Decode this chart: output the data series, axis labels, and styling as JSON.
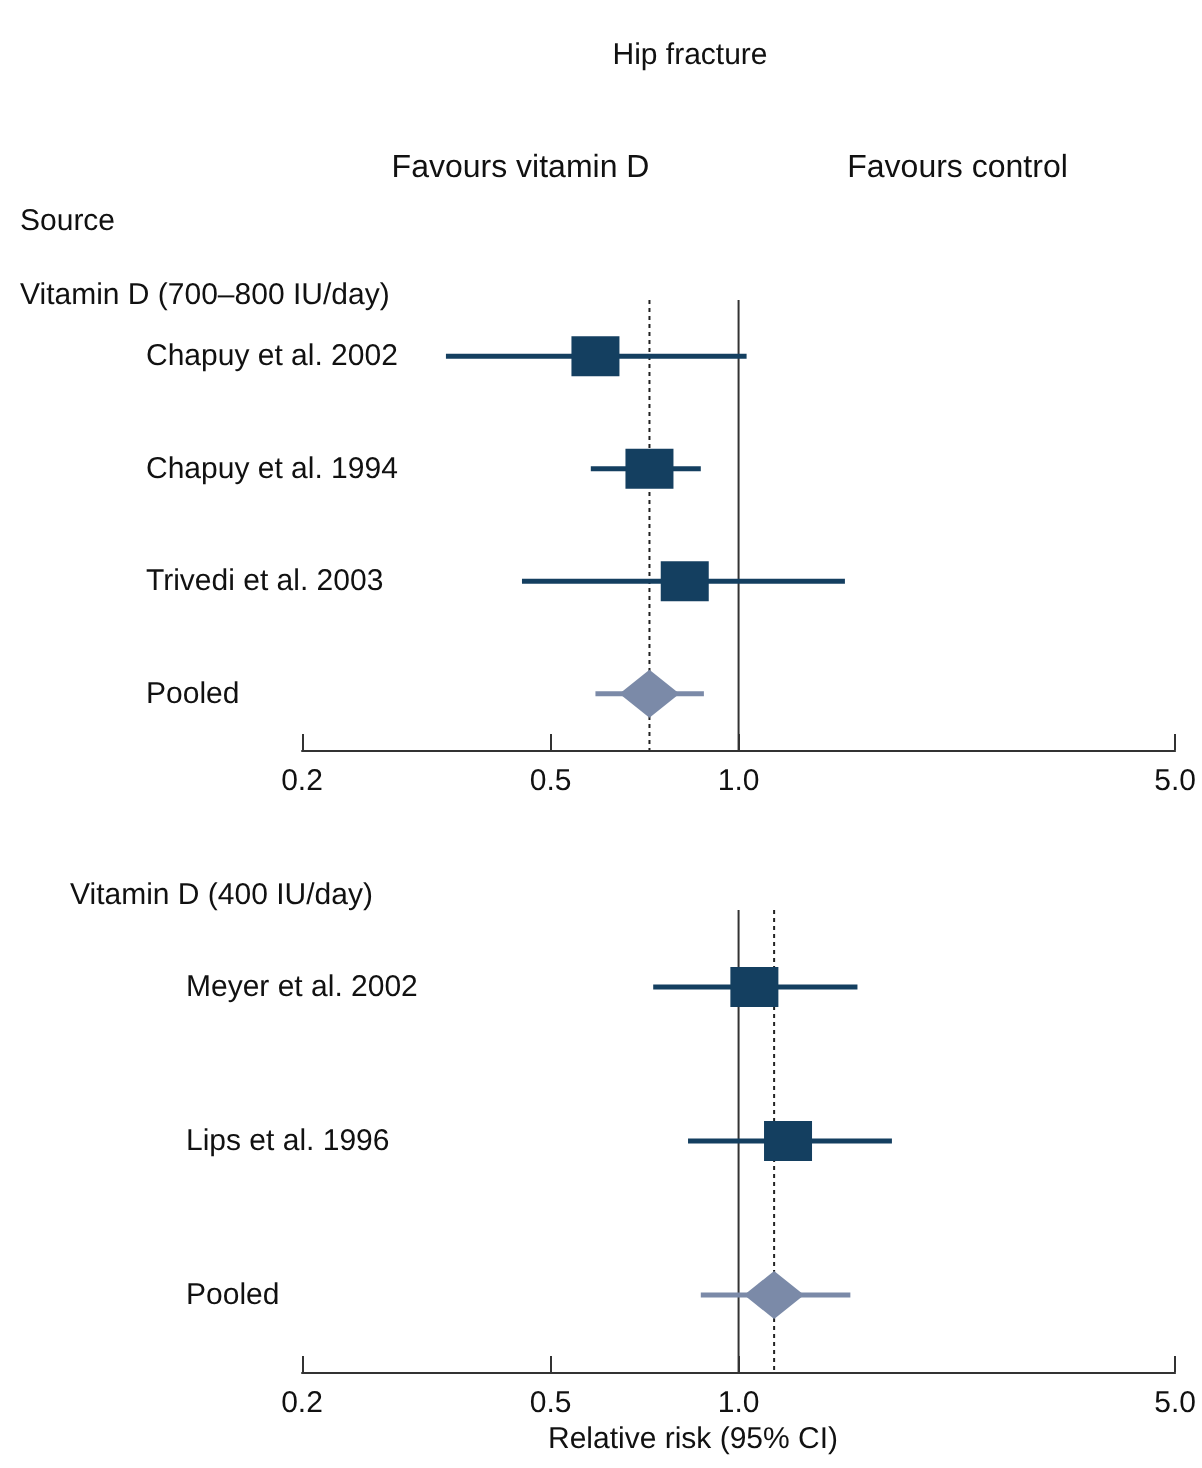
{
  "chart_data": [
    {
      "type": "scatter",
      "orientation": "horizontal",
      "title": "Hip fracture",
      "subtitle": "Vitamin D (700–800 IU/day)",
      "ylabel": "Source",
      "annotations": [
        "Favours vitamin D",
        "Favours control"
      ],
      "categories": [
        "Chapuy et al. 2002",
        "Chapuy et al. 1994",
        "Trivedi et al. 2003",
        "Pooled"
      ],
      "series": [
        {
          "color": "#143f60",
          "marker": "square",
          "values": [
            0.59,
            0.72,
            0.82,
            null
          ],
          "errors": [
            [
              0.34,
              1.03
            ],
            [
              0.58,
              0.87
            ],
            [
              0.45,
              1.48
            ],
            null
          ]
        },
        {
          "color": "#7b8aa8",
          "marker": "diamond",
          "values": [
            null,
            null,
            null,
            0.72
          ],
          "errors": [
            null,
            null,
            null,
            [
              0.59,
              0.88
            ]
          ]
        }
      ],
      "ref_lines": [
        {
          "axis": "x",
          "value": 1,
          "color": "#333333",
          "line_style": "solid"
        },
        {
          "axis": "x",
          "value": 0.72,
          "color": "#222222",
          "line_style": "dotted"
        }
      ],
      "log": "x",
      "xlim": [
        0.2,
        5
      ],
      "xticks": [
        {
          "value": 0.2,
          "label": "0.2"
        },
        {
          "value": 0.5,
          "label": "0.5"
        },
        {
          "value": 1,
          "label": "1.0"
        },
        {
          "value": 5,
          "label": "5.0"
        }
      ],
      "grid": false
    },
    {
      "type": "scatter",
      "orientation": "horizontal",
      "subtitle": "Vitamin D (400 IU/day)",
      "xlabel": "Relative risk (95% CI)",
      "categories": [
        "Meyer et al. 2002",
        "Lips et al. 1996",
        "Pooled"
      ],
      "series": [
        {
          "color": "#143f60",
          "marker": "square",
          "values": [
            1.06,
            1.2,
            null
          ],
          "errors": [
            [
              0.73,
              1.55
            ],
            [
              0.83,
              1.76
            ],
            null
          ]
        },
        {
          "color": "#7b8aa8",
          "marker": "diamond",
          "values": [
            null,
            null,
            1.14
          ],
          "errors": [
            null,
            null,
            [
              0.87,
              1.51
            ]
          ]
        }
      ],
      "ref_lines": [
        {
          "axis": "x",
          "value": 1,
          "color": "#333333",
          "line_style": "solid"
        },
        {
          "axis": "x",
          "value": 1.14,
          "color": "#222222",
          "line_style": "dotted"
        }
      ],
      "log": "x",
      "xlim": [
        0.2,
        5
      ],
      "xticks": [
        {
          "value": 0.2,
          "label": "0.2"
        },
        {
          "value": 0.5,
          "label": "0.5"
        },
        {
          "value": 1,
          "label": "1.0"
        },
        {
          "value": 5,
          "label": "5.0"
        }
      ],
      "grid": false
    }
  ]
}
